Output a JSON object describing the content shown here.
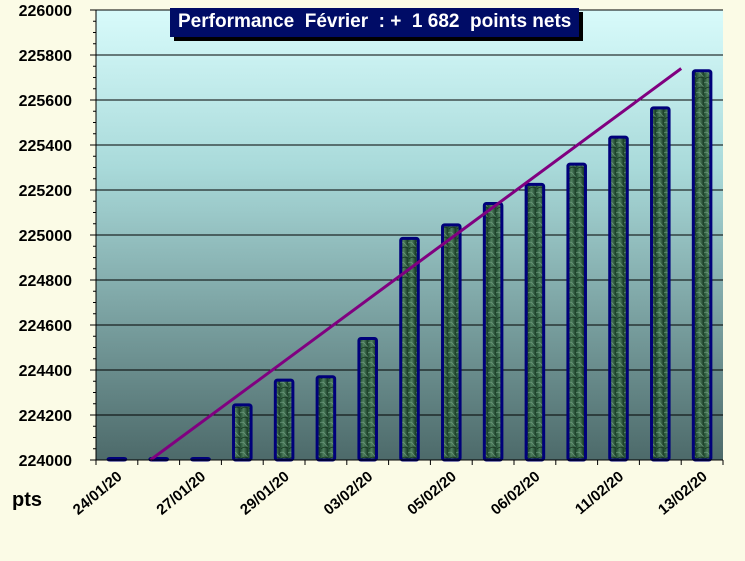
{
  "chart_data": {
    "type": "bar",
    "title": "Performance  Février  : +  1 682  points nets",
    "ylabel": "pts",
    "ylim": [
      224000,
      226000
    ],
    "yticks": [
      224000,
      224200,
      224400,
      224600,
      224800,
      225000,
      225200,
      225400,
      225600,
      225800,
      226000
    ],
    "category_labels": [
      "24/01/20",
      "27/01/20",
      "29/01/20",
      "03/02/20",
      "05/02/20",
      "06/02/20",
      "11/02/20",
      "13/02/20"
    ],
    "values": [
      224000,
      224000,
      224000,
      224245,
      224355,
      224370,
      224540,
      224985,
      225045,
      225140,
      225225,
      225315,
      225435,
      225565,
      225730
    ],
    "trendline": {
      "start": [
        1.3,
        224000
      ],
      "end": [
        14,
        225740
      ]
    },
    "grid": true,
    "legend": "none",
    "colors": {
      "bar_fill": "#2f5a3e",
      "bar_outline": "#00007a",
      "trendline": "#800080",
      "plot_top": "#d8fbfb",
      "plot_bottom": "#4d6a6a",
      "title_bg": "#000c66",
      "title_text": "#ffffff"
    }
  }
}
